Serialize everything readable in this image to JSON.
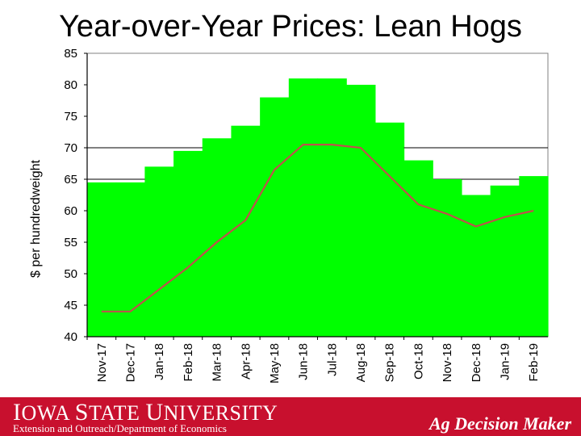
{
  "chart_data": {
    "type": "bar",
    "title": "Year-over-Year Prices: Lean Hogs",
    "ylabel": "$ per hundredweight",
    "xlabel": "",
    "ylim": [
      40,
      85
    ],
    "yticks": [
      40,
      45,
      50,
      55,
      60,
      65,
      70,
      75,
      80,
      85
    ],
    "reference_lines": [
      65,
      70
    ],
    "categories": [
      "Nov-17",
      "Dec-17",
      "Jan-18",
      "Feb-18",
      "Mar-18",
      "Apr-18",
      "May-18",
      "Jun-18",
      "Jul-18",
      "Aug-18",
      "Sep-18",
      "Oct-18",
      "Nov-18",
      "Dec-18",
      "Jan-19",
      "Feb-19"
    ],
    "series": [
      {
        "type": "bar",
        "color": "#00ff00",
        "values": [
          64.5,
          64.5,
          67.0,
          69.5,
          71.5,
          73.5,
          78.0,
          81.0,
          81.0,
          80.0,
          74.0,
          68.0,
          65.0,
          62.5,
          64.0,
          65.5
        ]
      },
      {
        "type": "line",
        "color": "#c0504d",
        "values": [
          44.0,
          44.0,
          47.5,
          51.0,
          55.0,
          58.5,
          66.5,
          70.5,
          70.5,
          70.0,
          65.5,
          61.0,
          59.5,
          57.5,
          59.0,
          60.0
        ]
      }
    ],
    "grid": false
  },
  "footer": {
    "brand_big1": "I",
    "brand_rest1": "OWA ",
    "brand_big2": "S",
    "brand_rest2": "TATE ",
    "brand_big3": "U",
    "brand_rest3": "NIVERSITY",
    "subline": "Extension and Outreach/Department of Economics",
    "product": "Ag Decision Maker"
  }
}
